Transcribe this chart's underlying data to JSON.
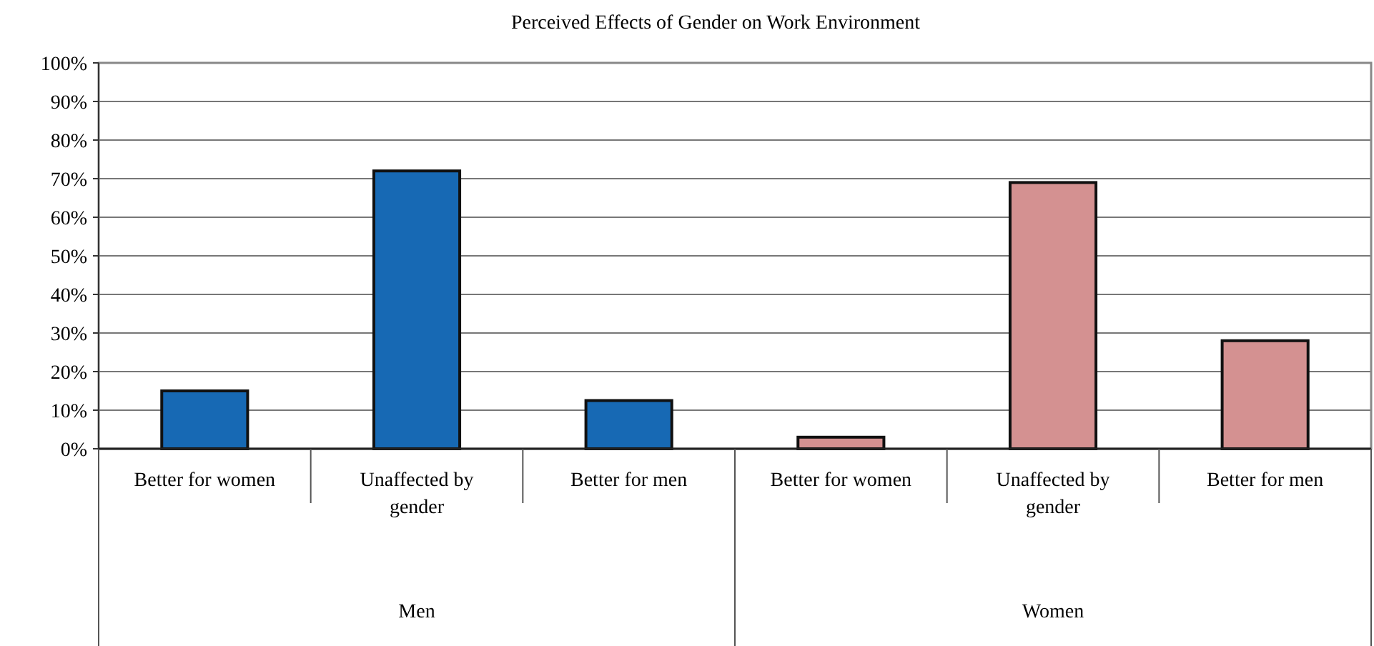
{
  "chart_data": {
    "type": "bar",
    "title": "Perceived Effects of Gender on Work Environment",
    "categories": [
      "Better for women",
      "Unaffected by gender",
      "Better for men",
      "Better for women",
      "Unaffected by gender",
      "Better for men"
    ],
    "series": [
      {
        "color": "#1769b4",
        "values": [
          15,
          72,
          12.5,
          null,
          null,
          null
        ]
      },
      {
        "color": "#d49191",
        "values": [
          null,
          null,
          null,
          3,
          69,
          28
        ]
      }
    ],
    "ylim": [
      0,
      100
    ],
    "yticks": [
      {
        "value": 0,
        "label": "0%"
      },
      {
        "value": 10,
        "label": "10%"
      },
      {
        "value": 20,
        "label": "20%"
      },
      {
        "value": 30,
        "label": "30%"
      },
      {
        "value": 40,
        "label": "40%"
      },
      {
        "value": 50,
        "label": "50%"
      },
      {
        "value": 60,
        "label": "60%"
      },
      {
        "value": 70,
        "label": "70%"
      },
      {
        "value": 80,
        "label": "80%"
      },
      {
        "value": 90,
        "label": "90%"
      },
      {
        "value": 100,
        "label": "100%"
      }
    ],
    "grid": "y",
    "annotations": [
      "Men",
      "Women"
    ]
  }
}
